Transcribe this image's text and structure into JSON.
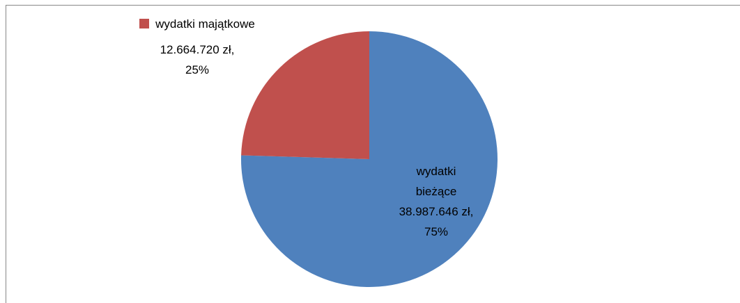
{
  "chart_data": {
    "type": "pie",
    "categories": [
      "wydatki bieżące",
      "wydatki majątkowe"
    ],
    "values": [
      38987646,
      12664720
    ],
    "value_labels": [
      "38.987.646 zł,",
      "12.664.720 zł,"
    ],
    "percents": [
      75,
      25
    ],
    "percent_labels": [
      "75%",
      "25%"
    ],
    "colors": [
      "#4f81bd",
      "#c0504d"
    ]
  }
}
